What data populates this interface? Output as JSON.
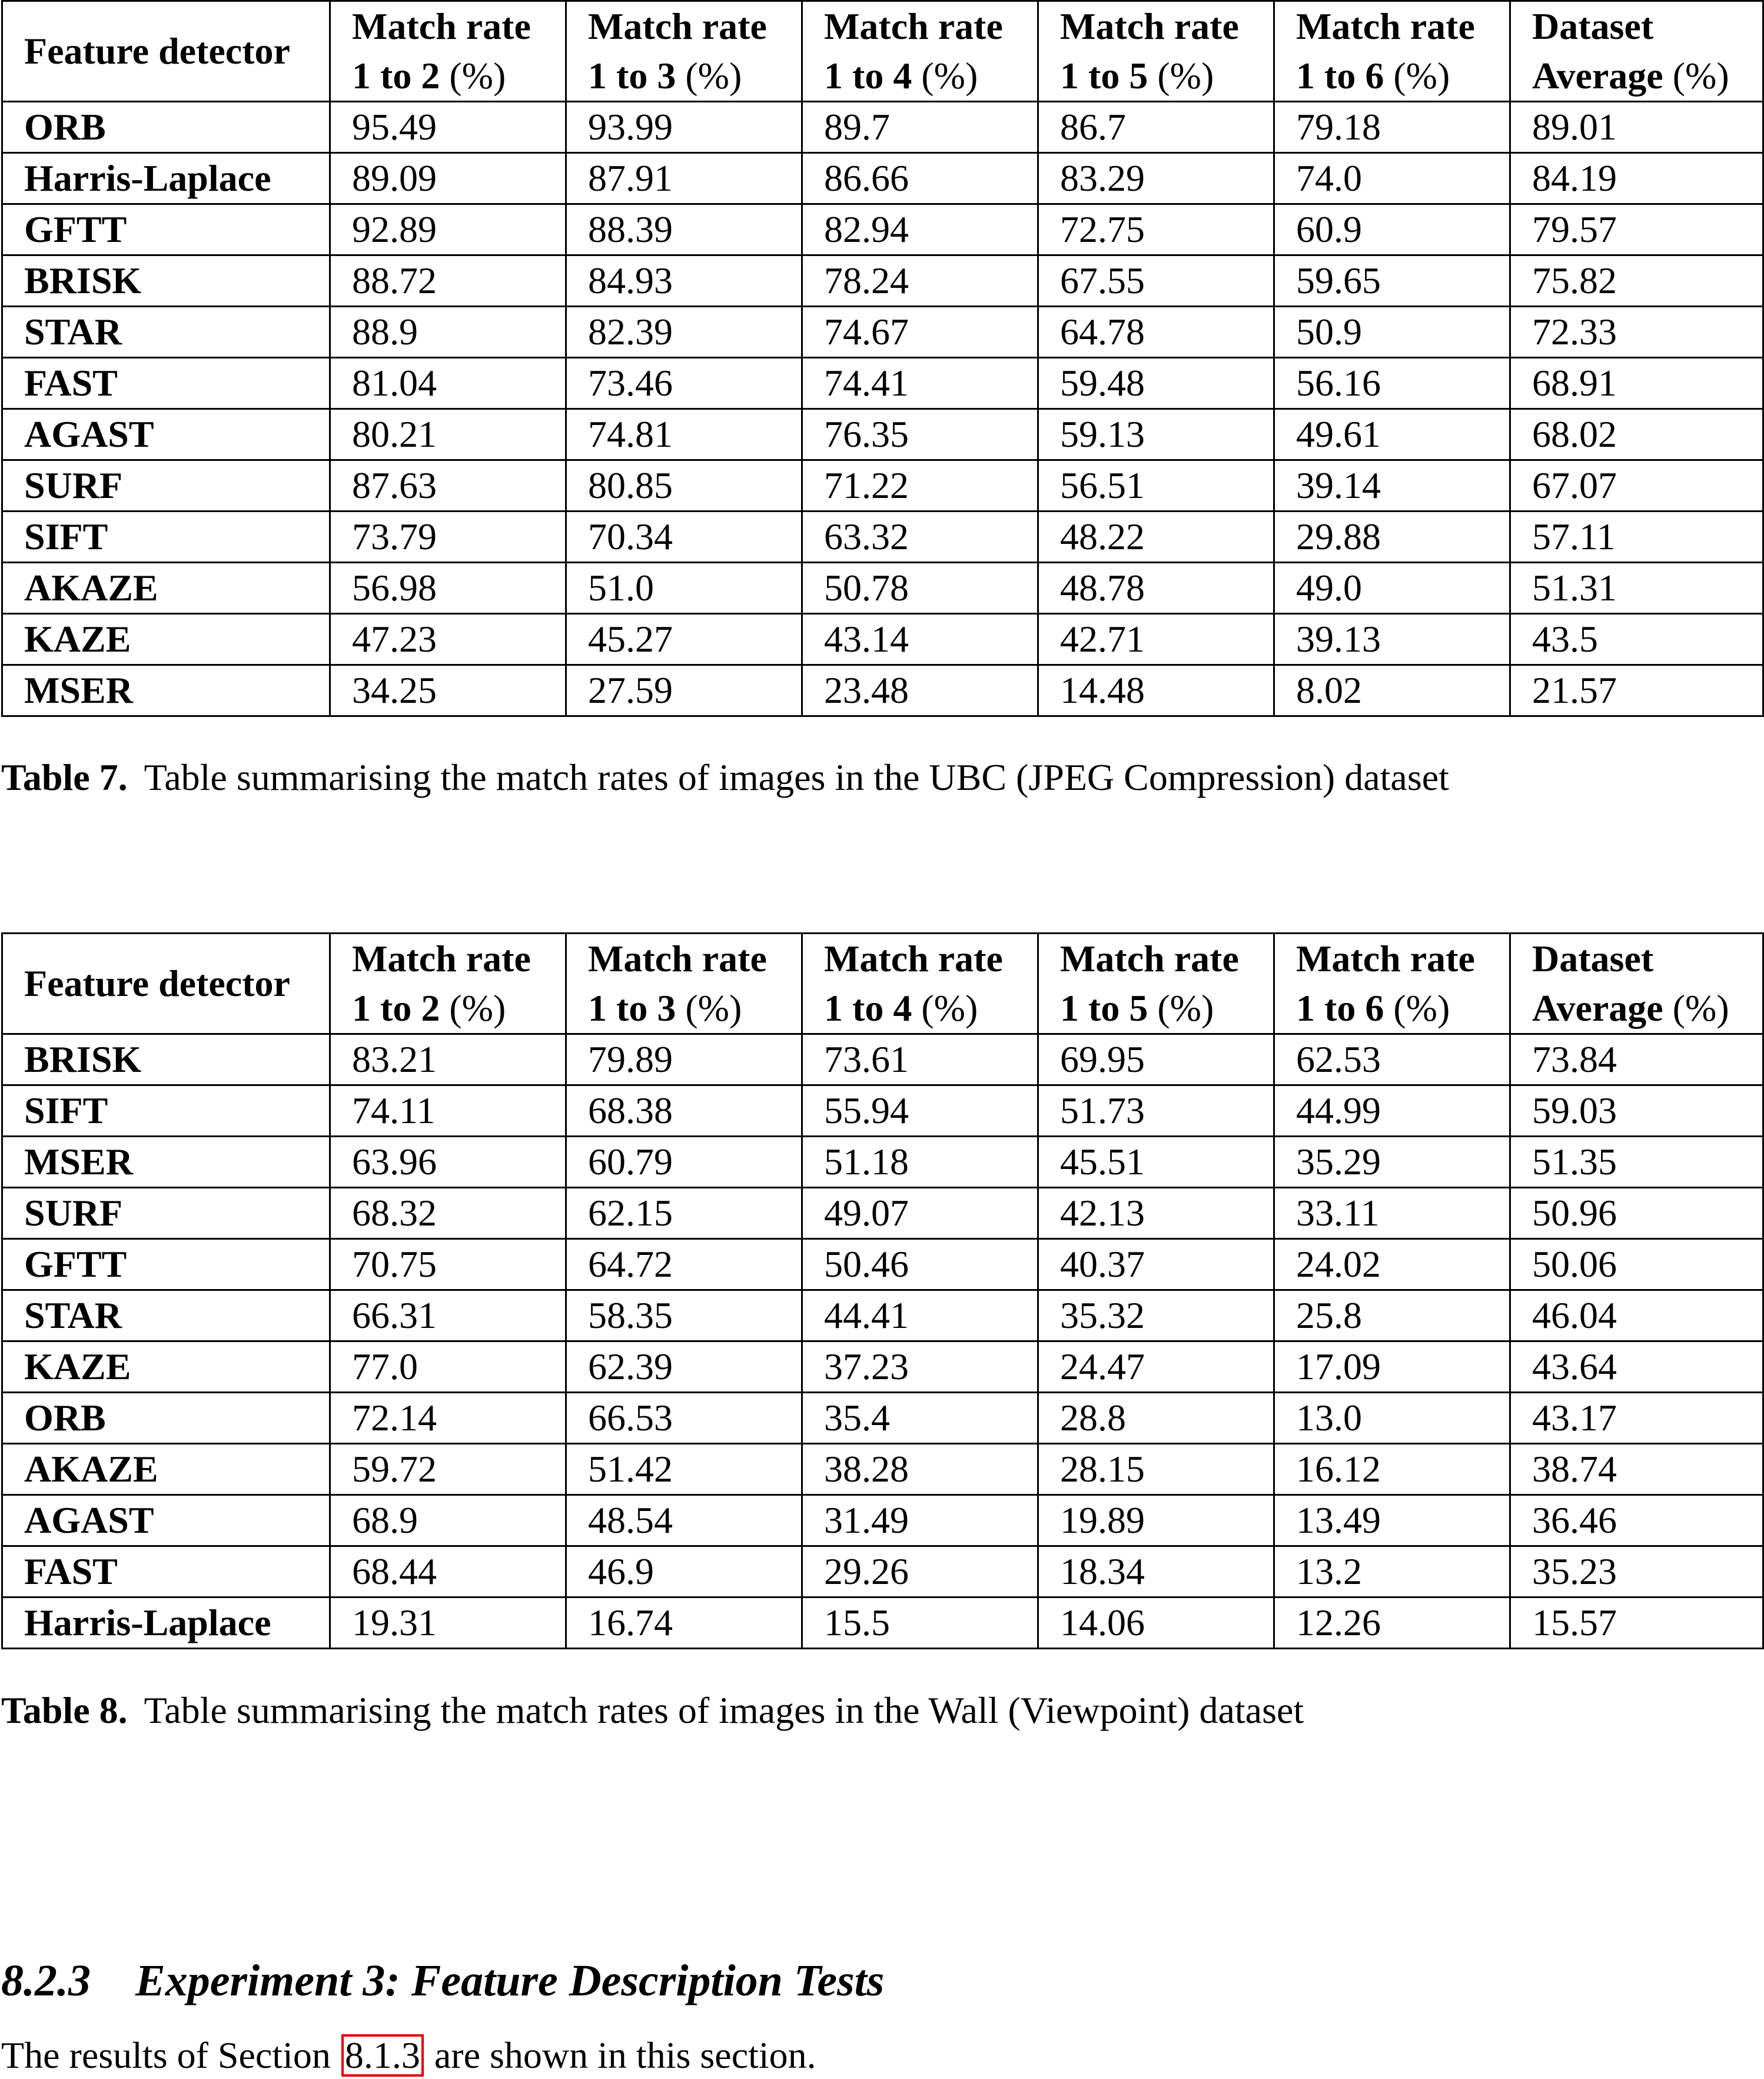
{
  "table7": {
    "header": {
      "col0": "Feature detector",
      "cols": [
        {
          "line1": "Match rate",
          "line2": "1 to 2",
          "unit": "(%)"
        },
        {
          "line1": "Match rate",
          "line2": "1 to 3",
          "unit": "(%)"
        },
        {
          "line1": "Match rate",
          "line2": "1 to 4",
          "unit": "(%)"
        },
        {
          "line1": "Match rate",
          "line2": "1 to 5",
          "unit": "(%)"
        },
        {
          "line1": "Match rate",
          "line2": "1 to 6",
          "unit": "(%)"
        },
        {
          "line1": "Dataset",
          "line2": "Average",
          "unit": "(%)"
        }
      ]
    },
    "rows": [
      {
        "name": "ORB",
        "values": [
          "95.49",
          "93.99",
          "89.7",
          "86.7",
          "79.18",
          "89.01"
        ]
      },
      {
        "name": "Harris-Laplace",
        "values": [
          "89.09",
          "87.91",
          "86.66",
          "83.29",
          "74.0",
          "84.19"
        ]
      },
      {
        "name": "GFTT",
        "values": [
          "92.89",
          "88.39",
          "82.94",
          "72.75",
          "60.9",
          "79.57"
        ]
      },
      {
        "name": "BRISK",
        "values": [
          "88.72",
          "84.93",
          "78.24",
          "67.55",
          "59.65",
          "75.82"
        ]
      },
      {
        "name": "STAR",
        "values": [
          "88.9",
          "82.39",
          "74.67",
          "64.78",
          "50.9",
          "72.33"
        ]
      },
      {
        "name": "FAST",
        "values": [
          "81.04",
          "73.46",
          "74.41",
          "59.48",
          "56.16",
          "68.91"
        ]
      },
      {
        "name": "AGAST",
        "values": [
          "80.21",
          "74.81",
          "76.35",
          "59.13",
          "49.61",
          "68.02"
        ]
      },
      {
        "name": "SURF",
        "values": [
          "87.63",
          "80.85",
          "71.22",
          "56.51",
          "39.14",
          "67.07"
        ]
      },
      {
        "name": "SIFT",
        "values": [
          "73.79",
          "70.34",
          "63.32",
          "48.22",
          "29.88",
          "57.11"
        ]
      },
      {
        "name": "AKAZE",
        "values": [
          "56.98",
          "51.0",
          "50.78",
          "48.78",
          "49.0",
          "51.31"
        ]
      },
      {
        "name": "KAZE",
        "values": [
          "47.23",
          "45.27",
          "43.14",
          "42.71",
          "39.13",
          "43.5"
        ]
      },
      {
        "name": "MSER",
        "values": [
          "34.25",
          "27.59",
          "23.48",
          "14.48",
          "8.02",
          "21.57"
        ]
      }
    ],
    "caption_label": "Table 7.",
    "caption_text": "Table summarising the match rates of images in the UBC (JPEG Compression) dataset"
  },
  "table8": {
    "header": {
      "col0": "Feature detector",
      "cols": [
        {
          "line1": "Match rate",
          "line2": "1 to 2",
          "unit": "(%)"
        },
        {
          "line1": "Match rate",
          "line2": "1 to 3",
          "unit": "(%)"
        },
        {
          "line1": "Match rate",
          "line2": "1 to 4",
          "unit": "(%)"
        },
        {
          "line1": "Match rate",
          "line2": "1 to 5",
          "unit": "(%)"
        },
        {
          "line1": "Match rate",
          "line2": "1 to 6",
          "unit": "(%)"
        },
        {
          "line1": "Dataset",
          "line2": "Average",
          "unit": "(%)"
        }
      ]
    },
    "rows": [
      {
        "name": "BRISK",
        "values": [
          "83.21",
          "79.89",
          "73.61",
          "69.95",
          "62.53",
          "73.84"
        ]
      },
      {
        "name": "SIFT",
        "values": [
          "74.11",
          "68.38",
          "55.94",
          "51.73",
          "44.99",
          "59.03"
        ]
      },
      {
        "name": "MSER",
        "values": [
          "63.96",
          "60.79",
          "51.18",
          "45.51",
          "35.29",
          "51.35"
        ]
      },
      {
        "name": "SURF",
        "values": [
          "68.32",
          "62.15",
          "49.07",
          "42.13",
          "33.11",
          "50.96"
        ]
      },
      {
        "name": "GFTT",
        "values": [
          "70.75",
          "64.72",
          "50.46",
          "40.37",
          "24.02",
          "50.06"
        ]
      },
      {
        "name": "STAR",
        "values": [
          "66.31",
          "58.35",
          "44.41",
          "35.32",
          "25.8",
          "46.04"
        ]
      },
      {
        "name": "KAZE",
        "values": [
          "77.0",
          "62.39",
          "37.23",
          "24.47",
          "17.09",
          "43.64"
        ]
      },
      {
        "name": "ORB",
        "values": [
          "72.14",
          "66.53",
          "35.4",
          "28.8",
          "13.0",
          "43.17"
        ]
      },
      {
        "name": "AKAZE",
        "values": [
          "59.72",
          "51.42",
          "38.28",
          "28.15",
          "16.12",
          "38.74"
        ]
      },
      {
        "name": "AGAST",
        "values": [
          "68.9",
          "48.54",
          "31.49",
          "19.89",
          "13.49",
          "36.46"
        ]
      },
      {
        "name": "FAST",
        "values": [
          "68.44",
          "46.9",
          "29.26",
          "18.34",
          "13.2",
          "35.23"
        ]
      },
      {
        "name": "Harris-Laplace",
        "values": [
          "19.31",
          "16.74",
          "15.5",
          "14.06",
          "12.26",
          "15.57"
        ]
      }
    ],
    "caption_label": "Table 8.",
    "caption_text": "Table summarising the match rates of images in the Wall (Viewpoint) dataset"
  },
  "section": {
    "number": "8.2.3",
    "title": "Experiment 3: Feature Description Tests",
    "body_before": "The results of Section ",
    "body_ref": "8.1.3",
    "body_after": " are shown in this section."
  },
  "colors": {
    "reference_box": "#e00000"
  }
}
